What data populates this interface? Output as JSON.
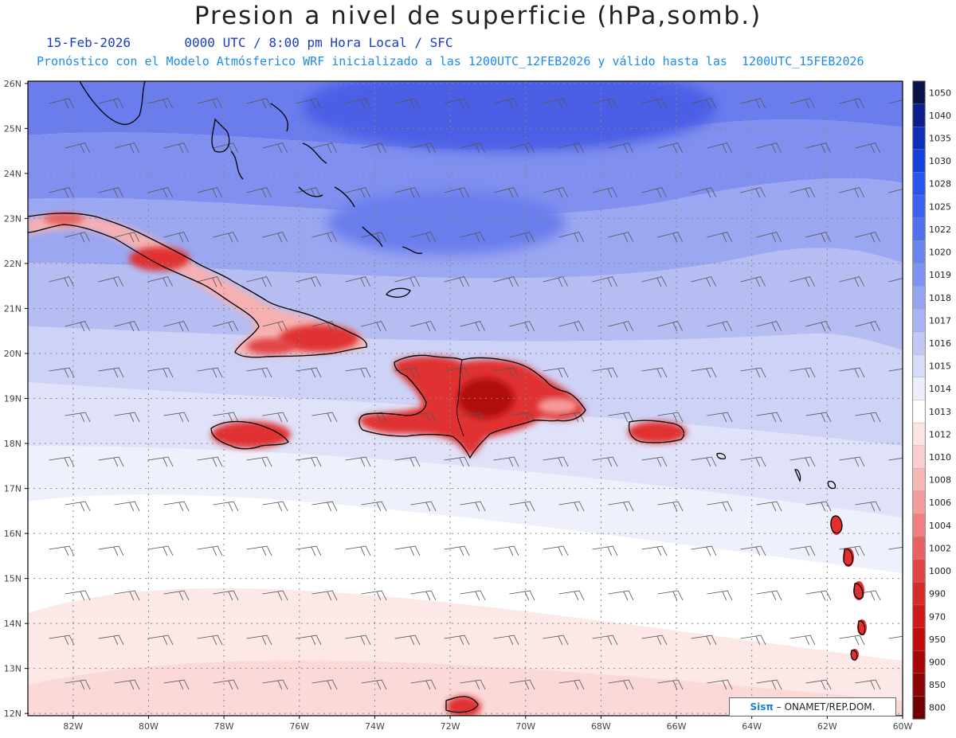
{
  "header": {
    "title": "Presion a nivel de superficie (hPa,somb.)",
    "date": "15-Feb-2026",
    "time_info": "0000 UTC / 8:00 pm Hora Local / SFC",
    "forecast_info": "Pronóstico con el Modelo Atmósferico WRF inicializado a las 1200UTC_12FEB2026 y válido hasta las  1200UTC_15FEB2026"
  },
  "map": {
    "lat_labels": [
      "26N",
      "25N",
      "24N",
      "23N",
      "22N",
      "21N",
      "20N",
      "19N",
      "18N",
      "17N",
      "16N",
      "15N",
      "14N",
      "13N",
      "12N"
    ],
    "lon_labels": [
      "82W",
      "80W",
      "78W",
      "76W",
      "74W",
      "72W",
      "70W",
      "68W",
      "66W",
      "64W",
      "62W",
      "60W"
    ],
    "islands": [
      "Cuba",
      "Hispaniola",
      "Jamaica",
      "Puerto Rico",
      "Bahamas",
      "Lesser Antilles"
    ]
  },
  "colorbar": {
    "levels": [
      "1050",
      "1040",
      "1035",
      "1030",
      "1028",
      "1025",
      "1022",
      "1020",
      "1019",
      "1018",
      "1017",
      "1016",
      "1015",
      "1014",
      "1013",
      "1012",
      "1010",
      "1008",
      "1006",
      "1004",
      "1002",
      "1000",
      "990",
      "970",
      "950",
      "900",
      "850",
      "800"
    ],
    "colors": [
      "#0a1448",
      "#0c1f8c",
      "#0f2fb8",
      "#1540e0",
      "#2a54ee",
      "#3c62f0",
      "#5070ee",
      "#6a84ee",
      "#7e92ef",
      "#95a4f0",
      "#aab4f2",
      "#c1c8f5",
      "#d8dcf8",
      "#eceefb",
      "#ffffff",
      "#fde4e4",
      "#fbcfcf",
      "#f8b7b7",
      "#f49d9d",
      "#f07f7f",
      "#ea6161",
      "#e24444",
      "#d92a2a",
      "#cf1818",
      "#c00c0c",
      "#a80606",
      "#8c0303",
      "#6e0000"
    ]
  },
  "credit": {
    "brand": "Sisπ",
    "org": "– ONAMET/REP.DOM."
  }
}
